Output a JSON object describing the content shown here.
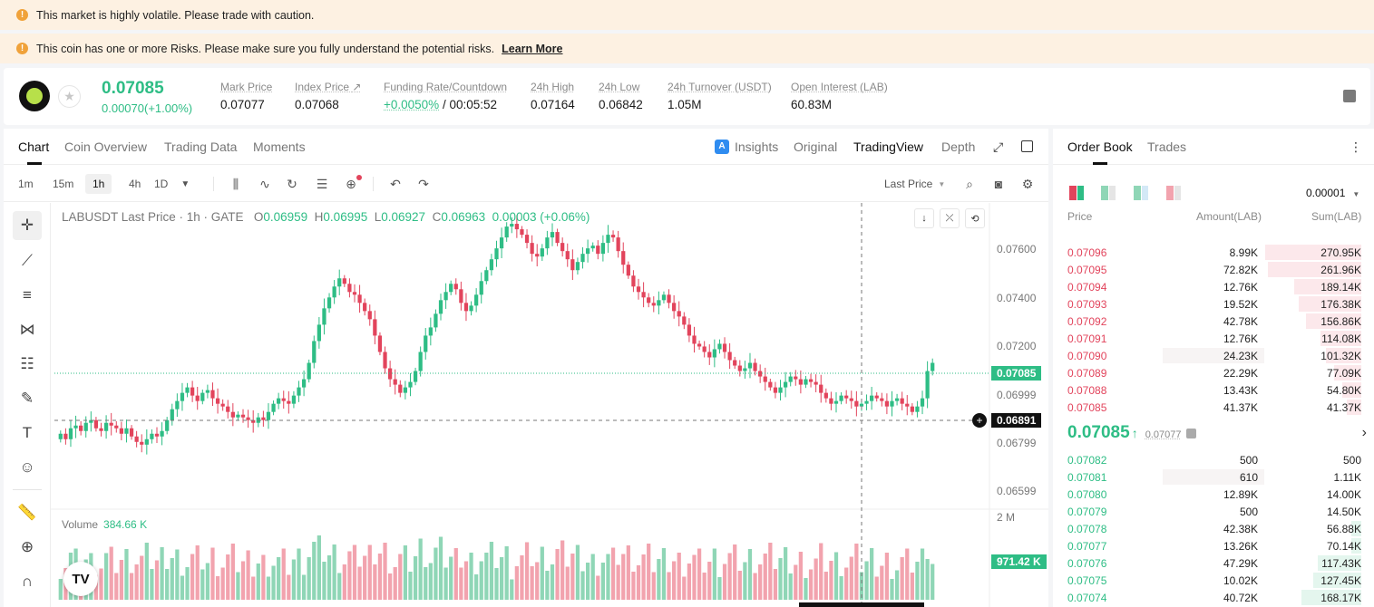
{
  "banners": [
    {
      "text": "This market is highly volatile. Please trade with caution.",
      "link": ""
    },
    {
      "text": "This coin has one or more Risks. Please make sure you fully understand the potential risks.",
      "link": "Learn More"
    }
  ],
  "ticker": {
    "last_price": "0.07085",
    "change": "0.00070(+1.00%)",
    "mark_price_label": "Mark Price",
    "mark_price": "0.07077",
    "index_price_label": "Index Price",
    "index_price": "0.07068",
    "funding_label": "Funding Rate/Countdown",
    "funding_rate": "+0.0050%",
    "countdown": "/ 00:05:52",
    "high_label": "24h High",
    "high": "0.07164",
    "low_label": "24h Low",
    "low": "0.06842",
    "turnover_label": "24h Turnover (USDT)",
    "turnover": "1.05M",
    "oi_label": "Open Interest (LAB)",
    "oi": "60.83M"
  },
  "chart_tabs": [
    "Chart",
    "Coin Overview",
    "Trading Data",
    "Moments"
  ],
  "chart_views": {
    "insights": "Insights",
    "original": "Original",
    "tradingview": "TradingView",
    "depth": "Depth"
  },
  "timeframes": [
    "1m",
    "15m",
    "1h",
    "4h",
    "1D"
  ],
  "price_type": "Last Price",
  "legend": {
    "symbol": "LABUSDT Last Price · 1h · GATE",
    "o_label": "O",
    "o": "0.06959",
    "h_label": "H",
    "h": "0.06995",
    "l_label": "L",
    "l": "0.06927",
    "c_label": "C",
    "c": "0.06963",
    "chg": "0.00003 (+0.06%)"
  },
  "volume_label": "Volume",
  "volume_value": "384.66 K",
  "price_axis": [
    "0.07600",
    "0.07400",
    "0.07200",
    "0.06999",
    "0.06799",
    "0.06599"
  ],
  "volume_axis_label": "2 M",
  "current_price_tag": "0.07085",
  "crosshair_price_tag": "0.06891",
  "volume_tag": "971.42 K",
  "colors": {
    "up": "#2ebd85",
    "down": "#e2445c",
    "up_vol": "#8fd6b6",
    "down_vol": "#f2a3ae"
  },
  "chart_data": {
    "type": "candlestick",
    "ylim": [
      0.0655,
      0.0766
    ],
    "candles": [],
    "volume_max": 2000000
  },
  "order_book": {
    "tabs": [
      "Order Book",
      "Trades"
    ],
    "precision": "0.00001",
    "headers": [
      "Price",
      "Amount(LAB)",
      "Sum(LAB)"
    ],
    "asks": [
      {
        "price": "0.07096",
        "amount": "8.99K",
        "sum": "270.95K",
        "depth": 1.0
      },
      {
        "price": "0.07095",
        "amount": "72.82K",
        "sum": "261.96K",
        "depth": 0.97
      },
      {
        "price": "0.07094",
        "amount": "12.76K",
        "sum": "189.14K",
        "depth": 0.7
      },
      {
        "price": "0.07093",
        "amount": "19.52K",
        "sum": "176.38K",
        "depth": 0.65
      },
      {
        "price": "0.07092",
        "amount": "42.78K",
        "sum": "156.86K",
        "depth": 0.58
      },
      {
        "price": "0.07091",
        "amount": "12.76K",
        "sum": "114.08K",
        "depth": 0.42
      },
      {
        "price": "0.07090",
        "amount": "24.23K",
        "sum": "101.32K",
        "depth": 0.37
      },
      {
        "price": "0.07089",
        "amount": "22.29K",
        "sum": "77.09K",
        "depth": 0.28
      },
      {
        "price": "0.07088",
        "amount": "13.43K",
        "sum": "54.80K",
        "depth": 0.2
      },
      {
        "price": "0.07085",
        "amount": "41.37K",
        "sum": "41.37K",
        "depth": 0.15
      }
    ],
    "mid_price": "0.07085",
    "mark_price": "0.07077",
    "bids": [
      {
        "price": "0.07082",
        "amount": "500",
        "sum": "500",
        "depth": 0.0
      },
      {
        "price": "0.07081",
        "amount": "610",
        "sum": "1.11K",
        "depth": 0.0
      },
      {
        "price": "0.07080",
        "amount": "12.89K",
        "sum": "14.00K",
        "depth": 0.0
      },
      {
        "price": "0.07079",
        "amount": "500",
        "sum": "14.50K",
        "depth": 0.0
      },
      {
        "price": "0.07078",
        "amount": "42.38K",
        "sum": "56.88K",
        "depth": 0.1
      },
      {
        "price": "0.07077",
        "amount": "13.26K",
        "sum": "70.14K",
        "depth": 0.1
      },
      {
        "price": "0.07076",
        "amount": "47.29K",
        "sum": "117.43K",
        "depth": 0.45
      },
      {
        "price": "0.07075",
        "amount": "10.02K",
        "sum": "127.45K",
        "depth": 0.5
      },
      {
        "price": "0.07074",
        "amount": "40.72K",
        "sum": "168.17K",
        "depth": 0.62
      }
    ]
  }
}
